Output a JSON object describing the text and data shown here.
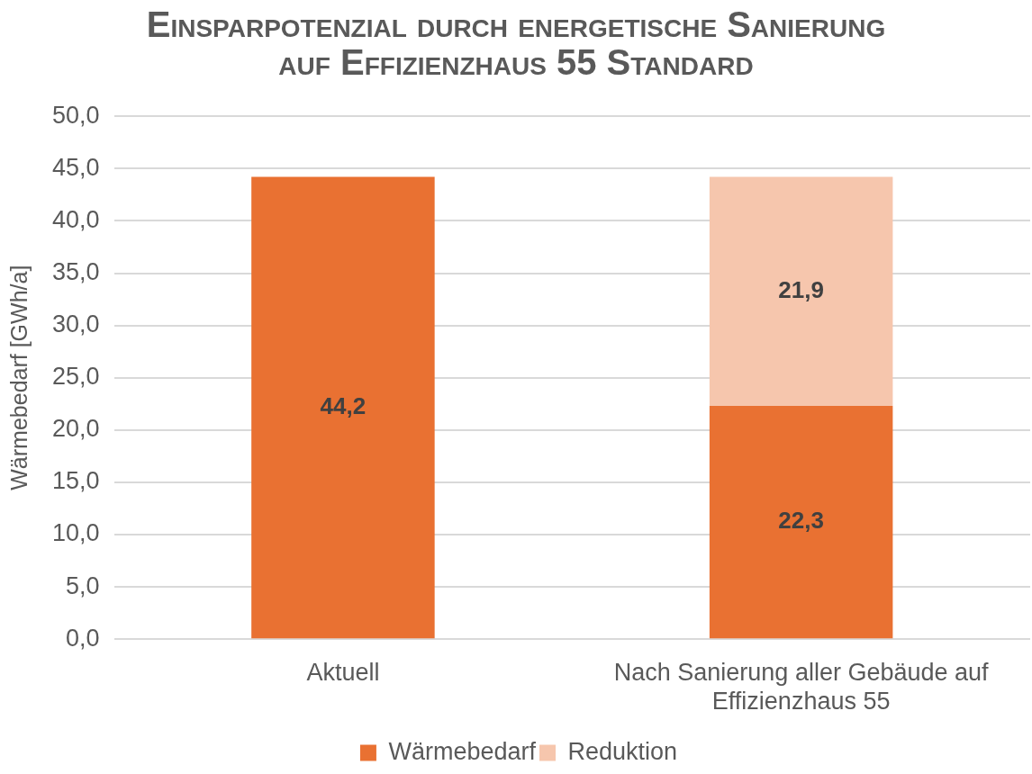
{
  "chart_data": {
    "type": "bar",
    "title": "Einsparpotenzial durch energetische Sanierung auf Effizienzhaus 55 Standard",
    "ylabel": "Wärmebedarf [GWh/a]",
    "categories": [
      "Aktuell",
      "Nach Sanierung aller Gebäude auf Effizienzhaus 55"
    ],
    "series": [
      {
        "name": "Wärmebedarf",
        "color": "#e97132",
        "values": [
          44.2,
          22.3
        ],
        "value_labels": [
          "44,2",
          "22,3"
        ]
      },
      {
        "name": "Reduktion",
        "color": "#f6c6ad",
        "values": [
          null,
          21.9
        ],
        "value_labels": [
          null,
          "21,9"
        ]
      }
    ],
    "stacked": true,
    "ylim": [
      0,
      50
    ],
    "yticks": [
      {
        "value": 0,
        "label": "0,0"
      },
      {
        "value": 5,
        "label": "5,0"
      },
      {
        "value": 10,
        "label": "10,0"
      },
      {
        "value": 15,
        "label": "15,0"
      },
      {
        "value": 20,
        "label": "20,0"
      },
      {
        "value": 25,
        "label": "25,0"
      },
      {
        "value": 30,
        "label": "30,0"
      },
      {
        "value": 35,
        "label": "35,0"
      },
      {
        "value": 40,
        "label": "40,0"
      },
      {
        "value": 45,
        "label": "45,0"
      },
      {
        "value": 50,
        "label": "50,0"
      }
    ],
    "grid": "y",
    "legend": "bottom"
  }
}
